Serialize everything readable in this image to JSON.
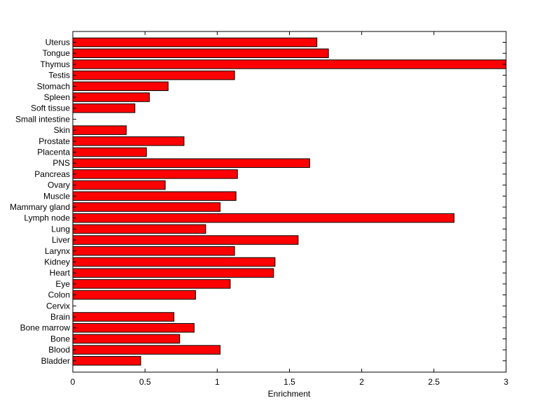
{
  "chart_data": {
    "type": "bar",
    "orientation": "horizontal",
    "title": "",
    "xlabel": "Enrichment",
    "ylabel": "",
    "xlim": [
      0,
      3
    ],
    "xticks": [
      0,
      0.5,
      1,
      1.5,
      2,
      2.5,
      3
    ],
    "xtick_labels": [
      "0",
      "0.5",
      "1",
      "1.5",
      "2",
      "2.5",
      "3"
    ],
    "grid": false,
    "legend": "none",
    "bar_color": "#ff0000",
    "categories": [
      "Uterus",
      "Tongue",
      "Thymus",
      "Testis",
      "Stomach",
      "Spleen",
      "Soft tissue",
      "Small intestine",
      "Skin",
      "Prostate",
      "Placenta",
      "PNS",
      "Pancreas",
      "Ovary",
      "Muscle",
      "Mammary gland",
      "Lymph node",
      "Lung",
      "Liver",
      "Larynx",
      "Kidney",
      "Heart",
      "Eye",
      "Colon",
      "Cervix",
      "Brain",
      "Bone marrow",
      "Bone",
      "Blood",
      "Bladder"
    ],
    "values": [
      1.69,
      1.77,
      3.0,
      1.12,
      0.66,
      0.53,
      0.43,
      0,
      0.37,
      0.77,
      0.51,
      1.64,
      1.14,
      0.64,
      1.13,
      1.02,
      2.64,
      0.92,
      1.56,
      1.12,
      1.4,
      1.39,
      1.09,
      0.85,
      0,
      0.7,
      0.84,
      0.74,
      1.02,
      0.47
    ]
  }
}
